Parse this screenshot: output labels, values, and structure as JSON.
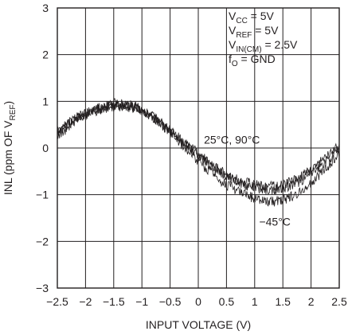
{
  "chart_data": {
    "type": "line",
    "title": "",
    "xlabel": "INPUT VOLTAGE (V)",
    "ylabel": {
      "main": "INL (ppm OF V",
      "sub": "REF",
      "close": ")"
    },
    "xlim": [
      -2.5,
      2.5
    ],
    "ylim": [
      -3,
      3
    ],
    "x_ticks": [
      "−2.5",
      "−2",
      "−1.5",
      "−1",
      "−0.5",
      "0",
      "0.5",
      "1",
      "1.5",
      "2",
      "2.5"
    ],
    "y_ticks": [
      "3",
      "2",
      "1",
      "0",
      "−1",
      "−2",
      "−3"
    ],
    "grid": true,
    "conditions": [
      {
        "main": "V",
        "sub": "CC",
        "rest": " = 5V"
      },
      {
        "main": "V",
        "sub": "REF",
        "rest": " = 5V"
      },
      {
        "main": "V",
        "sub": "IN(CM)",
        "rest": " = 2.5V"
      },
      {
        "main": "f",
        "sub": "O",
        "rest": " = GND"
      }
    ],
    "series_labels": [
      {
        "text": "25°C, 90°C",
        "x": 0.1,
        "y": 0.18
      },
      {
        "text": "−45°C",
        "x": 1.08,
        "y": -1.58
      }
    ],
    "series": [
      {
        "name": "25°C",
        "x": [
          -2.5,
          -2.25,
          -2.0,
          -1.75,
          -1.5,
          -1.25,
          -1.0,
          -0.75,
          -0.5,
          -0.25,
          0.0,
          0.25,
          0.5,
          0.75,
          1.0,
          1.25,
          1.5,
          1.75,
          2.0,
          2.25,
          2.5
        ],
        "y": [
          0.3,
          0.55,
          0.72,
          0.84,
          0.9,
          0.9,
          0.8,
          0.6,
          0.36,
          0.1,
          -0.15,
          -0.4,
          -0.6,
          -0.75,
          -0.85,
          -0.9,
          -0.85,
          -0.75,
          -0.55,
          -0.3,
          -0.05
        ]
      },
      {
        "name": "90°C",
        "x": [
          -2.5,
          -2.25,
          -2.0,
          -1.75,
          -1.5,
          -1.25,
          -1.0,
          -0.75,
          -0.5,
          -0.25,
          0.0,
          0.25,
          0.5,
          0.75,
          1.0,
          1.25,
          1.5,
          1.75,
          2.0,
          2.25,
          2.5
        ],
        "y": [
          0.35,
          0.6,
          0.75,
          0.86,
          0.95,
          0.93,
          0.82,
          0.62,
          0.38,
          0.12,
          -0.12,
          -0.36,
          -0.56,
          -0.7,
          -0.78,
          -0.82,
          -0.78,
          -0.66,
          -0.46,
          -0.22,
          0.05
        ]
      },
      {
        "name": "−45°C",
        "x": [
          -2.5,
          -2.25,
          -2.0,
          -1.75,
          -1.5,
          -1.25,
          -1.0,
          -0.75,
          -0.5,
          -0.25,
          0.0,
          0.25,
          0.5,
          0.75,
          1.0,
          1.25,
          1.5,
          1.75,
          2.0,
          2.25,
          2.5
        ],
        "y": [
          0.25,
          0.5,
          0.7,
          0.82,
          0.88,
          0.88,
          0.8,
          0.6,
          0.32,
          0.02,
          -0.28,
          -0.55,
          -0.78,
          -0.95,
          -1.08,
          -1.15,
          -1.1,
          -0.98,
          -0.75,
          -0.45,
          -0.1
        ]
      }
    ]
  }
}
